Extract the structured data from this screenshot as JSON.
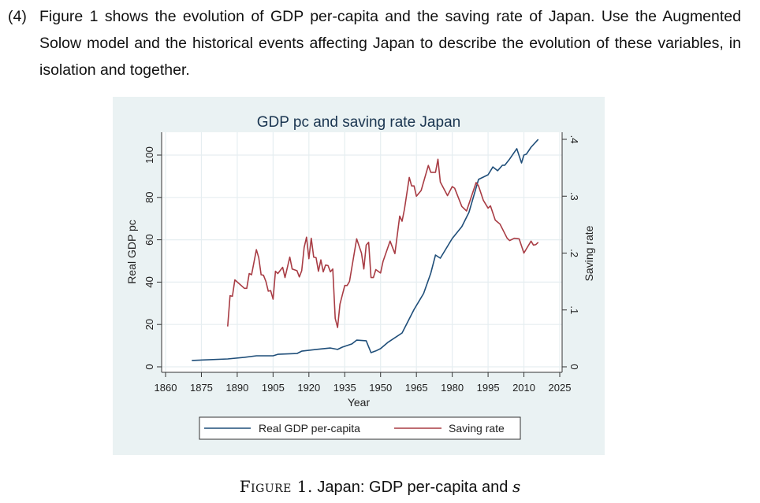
{
  "question": {
    "number": "(4)",
    "text": "Figure 1 shows the evolution of GDP per-capita and the saving rate of Japan.  Use the Augmented Solow model and the historical events affecting Japan to describe the evolution of these variables, in isolation and together."
  },
  "caption": {
    "figure_label": "Figure 1.",
    "text": " Japan: GDP per-capita and ",
    "symbol": "s"
  },
  "chart_data": {
    "type": "line",
    "title": "GDP pc and saving rate Japan",
    "xlabel": "Year",
    "ylabel": "Real GDP pc",
    "y2label": "Saving rate",
    "xlim": [
      1860,
      2025
    ],
    "ylim": [
      0,
      100
    ],
    "y2lim": [
      0,
      0.4
    ],
    "x_ticks": [
      1860,
      1875,
      1890,
      1905,
      1920,
      1935,
      1950,
      1965,
      1980,
      1995,
      2010,
      2025
    ],
    "y_ticks": [
      "0",
      "20",
      "40",
      "60",
      "80",
      "100"
    ],
    "y2_ticks": [
      "0",
      ".1",
      ".2",
      ".3",
      ".4"
    ],
    "grid": true,
    "legend_placement": "bottom",
    "background": "#eaf2f3",
    "series": [
      {
        "name": "Real GDP per-capita",
        "axis": "left",
        "color": "#1f4e79",
        "points": [
          [
            1871,
            3.0
          ],
          [
            1886,
            3.7
          ],
          [
            1893,
            4.5
          ],
          [
            1898,
            5.2
          ],
          [
            1905,
            5.2
          ],
          [
            1907,
            5.9
          ],
          [
            1915,
            6.3
          ],
          [
            1917,
            7.4
          ],
          [
            1923,
            8.2
          ],
          [
            1929,
            8.9
          ],
          [
            1932,
            8.2
          ],
          [
            1934,
            9.3
          ],
          [
            1938,
            10.8
          ],
          [
            1940,
            12.6
          ],
          [
            1944,
            12.3
          ],
          [
            1946,
            6.7
          ],
          [
            1948,
            7.5
          ],
          [
            1950,
            8.6
          ],
          [
            1953,
            11.5
          ],
          [
            1959,
            16.0
          ],
          [
            1964,
            27.1
          ],
          [
            1968,
            34.6
          ],
          [
            1971,
            44.2
          ],
          [
            1973,
            52.8
          ],
          [
            1975,
            51.3
          ],
          [
            1980,
            60.6
          ],
          [
            1984,
            66.2
          ],
          [
            1987,
            72.9
          ],
          [
            1991,
            88.5
          ],
          [
            1993,
            89.6
          ],
          [
            1995,
            90.7
          ],
          [
            1997,
            94.4
          ],
          [
            1999,
            92.6
          ],
          [
            2001,
            95.2
          ],
          [
            2002,
            95.2
          ],
          [
            2004,
            98.1
          ],
          [
            2007,
            103.0
          ],
          [
            2009,
            96.3
          ],
          [
            2010,
            100.0
          ],
          [
            2011,
            100.4
          ],
          [
            2013,
            103.7
          ],
          [
            2016,
            107.4
          ]
        ]
      },
      {
        "name": "Saving rate",
        "axis": "right",
        "color": "#a83c44",
        "points": [
          [
            1886,
            0.071
          ],
          [
            1887,
            0.125
          ],
          [
            1888,
            0.124
          ],
          [
            1889,
            0.153
          ],
          [
            1893,
            0.138
          ],
          [
            1894,
            0.138
          ],
          [
            1895,
            0.164
          ],
          [
            1896,
            0.162
          ],
          [
            1898,
            0.206
          ],
          [
            1899,
            0.192
          ],
          [
            1900,
            0.162
          ],
          [
            1901,
            0.161
          ],
          [
            1902,
            0.15
          ],
          [
            1903,
            0.133
          ],
          [
            1904,
            0.134
          ],
          [
            1905,
            0.119
          ],
          [
            1906,
            0.168
          ],
          [
            1907,
            0.164
          ],
          [
            1909,
            0.175
          ],
          [
            1910,
            0.157
          ],
          [
            1912,
            0.193
          ],
          [
            1913,
            0.172
          ],
          [
            1915,
            0.169
          ],
          [
            1916,
            0.158
          ],
          [
            1917,
            0.169
          ],
          [
            1918,
            0.21
          ],
          [
            1919,
            0.228
          ],
          [
            1920,
            0.19
          ],
          [
            1921,
            0.226
          ],
          [
            1922,
            0.193
          ],
          [
            1923,
            0.192
          ],
          [
            1924,
            0.168
          ],
          [
            1925,
            0.188
          ],
          [
            1926,
            0.167
          ],
          [
            1927,
            0.179
          ],
          [
            1928,
            0.178
          ],
          [
            1929,
            0.167
          ],
          [
            1930,
            0.172
          ],
          [
            1931,
            0.085
          ],
          [
            1932,
            0.069
          ],
          [
            1933,
            0.11
          ],
          [
            1935,
            0.143
          ],
          [
            1936,
            0.143
          ],
          [
            1937,
            0.15
          ],
          [
            1940,
            0.225
          ],
          [
            1942,
            0.2
          ],
          [
            1943,
            0.172
          ],
          [
            1944,
            0.214
          ],
          [
            1945,
            0.219
          ],
          [
            1946,
            0.157
          ],
          [
            1947,
            0.157
          ],
          [
            1948,
            0.171
          ],
          [
            1950,
            0.165
          ],
          [
            1951,
            0.185
          ],
          [
            1954,
            0.221
          ],
          [
            1956,
            0.199
          ],
          [
            1958,
            0.265
          ],
          [
            1959,
            0.256
          ],
          [
            1960,
            0.277
          ],
          [
            1962,
            0.333
          ],
          [
            1963,
            0.318
          ],
          [
            1964,
            0.318
          ],
          [
            1965,
            0.3
          ],
          [
            1967,
            0.31
          ],
          [
            1970,
            0.354
          ],
          [
            1971,
            0.342
          ],
          [
            1973,
            0.342
          ],
          [
            1974,
            0.365
          ],
          [
            1975,
            0.325
          ],
          [
            1978,
            0.301
          ],
          [
            1980,
            0.317
          ],
          [
            1981,
            0.314
          ],
          [
            1984,
            0.282
          ],
          [
            1986,
            0.274
          ],
          [
            1990,
            0.324
          ],
          [
            1991,
            0.318
          ],
          [
            1993,
            0.293
          ],
          [
            1995,
            0.279
          ],
          [
            1996,
            0.283
          ],
          [
            1998,
            0.258
          ],
          [
            2000,
            0.251
          ],
          [
            2003,
            0.226
          ],
          [
            2004,
            0.222
          ],
          [
            2006,
            0.226
          ],
          [
            2008,
            0.225
          ],
          [
            2010,
            0.2
          ],
          [
            2013,
            0.221
          ],
          [
            2014,
            0.214
          ],
          [
            2015,
            0.215
          ],
          [
            2016,
            0.219
          ]
        ]
      }
    ]
  }
}
